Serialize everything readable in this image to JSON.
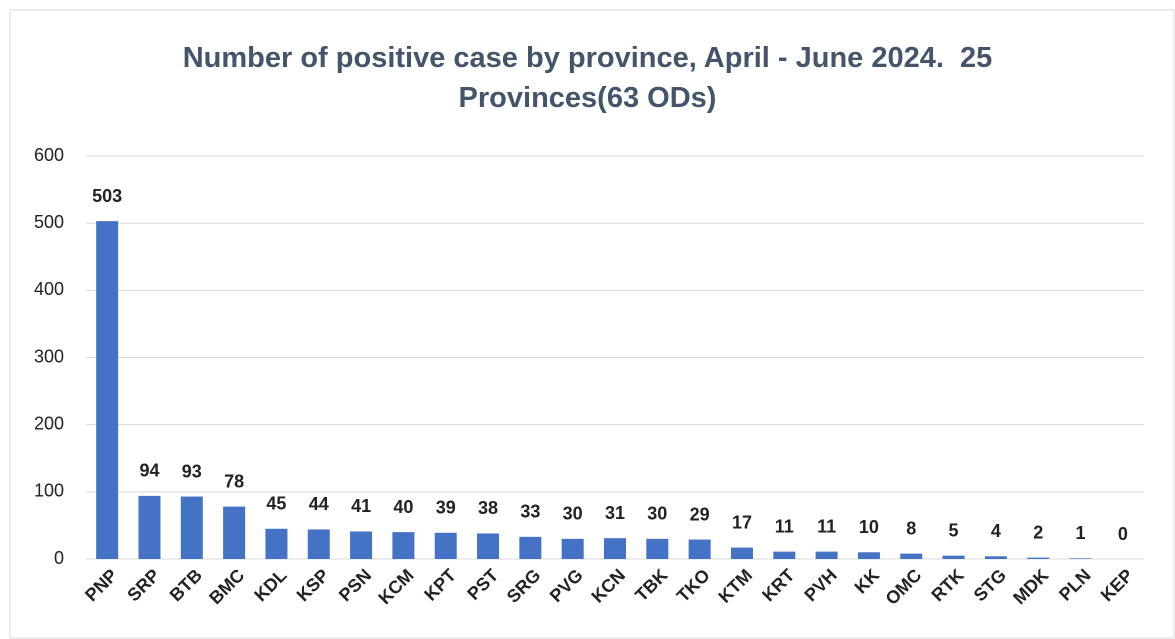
{
  "chart_data": {
    "type": "bar",
    "title": "Number of positive case by province, April - June 2024.  25 Provinces(63 ODs)",
    "categories": [
      "PNP",
      "SRP",
      "BTB",
      "BMC",
      "KDL",
      "KSP",
      "PSN",
      "KCM",
      "KPT",
      "PST",
      "SRG",
      "PVG",
      "KCN",
      "TBK",
      "TKO",
      "KTM",
      "KRT",
      "PVH",
      "KK",
      "OMC",
      "RTK",
      "STG",
      "MDK",
      "PLN",
      "KEP"
    ],
    "values": [
      503,
      94,
      93,
      78,
      45,
      44,
      41,
      40,
      39,
      38,
      33,
      30,
      31,
      30,
      29,
      17,
      11,
      11,
      10,
      8,
      5,
      4,
      2,
      1,
      0
    ],
    "color": "#4472c4",
    "ylim": [
      0,
      600
    ],
    "yticks": [
      0,
      100,
      200,
      300,
      400,
      500,
      600
    ],
    "grid": true
  }
}
